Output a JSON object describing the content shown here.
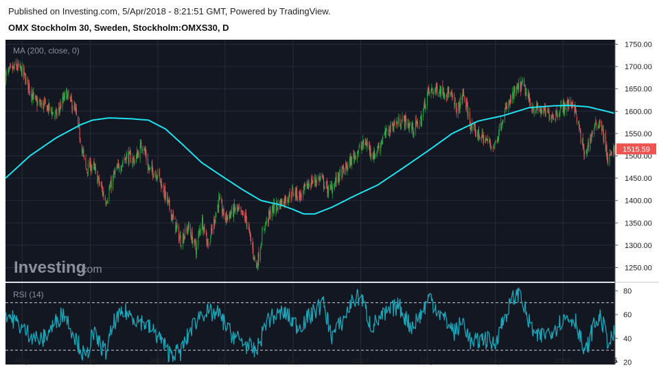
{
  "header": {
    "published": "Published on Investing.com, 5/Apr/2018 - 8:21:51 GMT, Powered by TradingView.",
    "instrument": "OMX Stockholm 30, Sweden, Stockholm:OMXS30, D"
  },
  "watermark": {
    "text": "Investing",
    "suffix": ".com"
  },
  "colors": {
    "background": "#131722",
    "grid": "#262b3a",
    "up": "#27a641",
    "down": "#e85b5b",
    "ma": "#1fe3f0",
    "rsi": "#1aa6b8",
    "price_tag": "#ef5350"
  },
  "chart_data": [
    {
      "type": "candlestick",
      "indicator_label": "MA (200, close, 0)",
      "y_ticks": [
        "1750.00",
        "1700.00",
        "1650.00",
        "1600.00",
        "1550.00",
        "1500.00",
        "1450.00",
        "1400.00",
        "1350.00",
        "1300.00",
        "1250.00"
      ],
      "ylim": [
        1220,
        1760
      ],
      "last_price": "1515.59",
      "close_path": [
        [
          "2015-04-01",
          1680
        ],
        [
          "2015-04-20",
          1700
        ],
        [
          "2015-05-01",
          1690
        ],
        [
          "2015-05-25",
          1620
        ],
        [
          "2015-06-15",
          1610
        ],
        [
          "2015-07-01",
          1590
        ],
        [
          "2015-07-20",
          1640
        ],
        [
          "2015-08-05",
          1600
        ],
        [
          "2015-08-24",
          1470
        ],
        [
          "2015-09-05",
          1480
        ],
        [
          "2015-09-29",
          1400
        ],
        [
          "2015-10-15",
          1460
        ],
        [
          "2015-11-05",
          1500
        ],
        [
          "2015-11-20",
          1490
        ],
        [
          "2015-12-05",
          1530
        ],
        [
          "2015-12-15",
          1470
        ],
        [
          "2016-01-01",
          1460
        ],
        [
          "2016-01-20",
          1390
        ],
        [
          "2016-02-11",
          1310
        ],
        [
          "2016-02-25",
          1340
        ],
        [
          "2016-03-10",
          1290
        ],
        [
          "2016-03-20",
          1360
        ],
        [
          "2016-04-01",
          1300
        ],
        [
          "2016-04-20",
          1400
        ],
        [
          "2016-05-01",
          1360
        ],
        [
          "2016-05-20",
          1380
        ],
        [
          "2016-06-08",
          1360
        ],
        [
          "2016-06-27",
          1250
        ],
        [
          "2016-07-10",
          1340
        ],
        [
          "2016-07-25",
          1380
        ],
        [
          "2016-08-15",
          1400
        ],
        [
          "2016-09-01",
          1420
        ],
        [
          "2016-09-15",
          1410
        ],
        [
          "2016-10-01",
          1440
        ],
        [
          "2016-10-20",
          1450
        ],
        [
          "2016-11-05",
          1420
        ],
        [
          "2016-11-20",
          1450
        ],
        [
          "2016-12-10",
          1480
        ],
        [
          "2016-12-25",
          1510
        ],
        [
          "2017-01-10",
          1530
        ],
        [
          "2017-01-25",
          1500
        ],
        [
          "2017-02-10",
          1540
        ],
        [
          "2017-02-28",
          1570
        ],
        [
          "2017-03-20",
          1580
        ],
        [
          "2017-04-05",
          1560
        ],
        [
          "2017-04-20",
          1580
        ],
        [
          "2017-05-01",
          1640
        ],
        [
          "2017-05-20",
          1650
        ],
        [
          "2017-06-10",
          1640
        ],
        [
          "2017-06-25",
          1600
        ],
        [
          "2017-07-05",
          1640
        ],
        [
          "2017-07-20",
          1560
        ],
        [
          "2017-08-10",
          1540
        ],
        [
          "2017-08-30",
          1520
        ],
        [
          "2017-09-15",
          1590
        ],
        [
          "2017-10-05",
          1640
        ],
        [
          "2017-10-20",
          1660
        ],
        [
          "2017-11-05",
          1610
        ],
        [
          "2017-11-25",
          1600
        ],
        [
          "2017-12-15",
          1590
        ],
        [
          "2018-01-01",
          1610
        ],
        [
          "2018-01-20",
          1620
        ],
        [
          "2018-02-09",
          1500
        ],
        [
          "2018-02-25",
          1560
        ],
        [
          "2018-03-10",
          1580
        ],
        [
          "2018-03-23",
          1490
        ],
        [
          "2018-04-05",
          1515
        ]
      ],
      "ma_200": [
        [
          "2015-04-01",
          1450
        ],
        [
          "2015-05-15",
          1500
        ],
        [
          "2015-07-01",
          1540
        ],
        [
          "2015-08-15",
          1570
        ],
        [
          "2015-09-05",
          1580
        ],
        [
          "2015-10-05",
          1585
        ],
        [
          "2015-11-15",
          1583
        ],
        [
          "2015-12-15",
          1580
        ],
        [
          "2016-01-15",
          1560
        ],
        [
          "2016-02-15",
          1525
        ],
        [
          "2016-03-20",
          1485
        ],
        [
          "2016-04-25",
          1455
        ],
        [
          "2016-06-01",
          1425
        ],
        [
          "2016-07-05",
          1400
        ],
        [
          "2016-08-10",
          1390
        ],
        [
          "2016-09-01",
          1380
        ],
        [
          "2016-09-20",
          1370
        ],
        [
          "2016-10-10",
          1370
        ],
        [
          "2016-11-10",
          1385
        ],
        [
          "2016-12-20",
          1410
        ],
        [
          "2017-02-01",
          1435
        ],
        [
          "2017-03-15",
          1470
        ],
        [
          "2017-05-01",
          1510
        ],
        [
          "2017-06-15",
          1550
        ],
        [
          "2017-08-01",
          1578
        ],
        [
          "2017-09-15",
          1590
        ],
        [
          "2017-11-01",
          1608
        ],
        [
          "2017-12-15",
          1612
        ],
        [
          "2018-01-10",
          1613
        ],
        [
          "2018-02-15",
          1610
        ],
        [
          "2018-03-10",
          1603
        ],
        [
          "2018-04-05",
          1595
        ]
      ]
    },
    {
      "type": "line",
      "indicator_label": "RSI (14)",
      "y_ticks": [
        "80",
        "60",
        "40",
        "20"
      ],
      "ylim": [
        18,
        86
      ],
      "dashed_levels": [
        70,
        30
      ],
      "anchors": [
        [
          "2015-04-01",
          62
        ],
        [
          "2015-05-10",
          45
        ],
        [
          "2015-06-05",
          38
        ],
        [
          "2015-07-15",
          62
        ],
        [
          "2015-08-24",
          22
        ],
        [
          "2015-09-05",
          45
        ],
        [
          "2015-09-29",
          28
        ],
        [
          "2015-10-15",
          55
        ],
        [
          "2015-11-05",
          62
        ],
        [
          "2015-12-10",
          52
        ],
        [
          "2016-01-05",
          40
        ],
        [
          "2016-01-20",
          28
        ],
        [
          "2016-02-11",
          28
        ],
        [
          "2016-03-01",
          48
        ],
        [
          "2016-03-20",
          62
        ],
        [
          "2016-04-20",
          60
        ],
        [
          "2016-05-10",
          45
        ],
        [
          "2016-06-27",
          28
        ],
        [
          "2016-07-15",
          55
        ],
        [
          "2016-08-15",
          62
        ],
        [
          "2016-09-10",
          50
        ],
        [
          "2016-10-05",
          60
        ],
        [
          "2016-10-25",
          70
        ],
        [
          "2016-11-10",
          42
        ],
        [
          "2016-11-30",
          55
        ],
        [
          "2016-12-15",
          70
        ],
        [
          "2017-01-01",
          76
        ],
        [
          "2017-01-20",
          50
        ],
        [
          "2017-02-15",
          60
        ],
        [
          "2017-03-10",
          68
        ],
        [
          "2017-04-01",
          50
        ],
        [
          "2017-04-20",
          60
        ],
        [
          "2017-05-05",
          75
        ],
        [
          "2017-05-25",
          60
        ],
        [
          "2017-06-20",
          45
        ],
        [
          "2017-07-05",
          55
        ],
        [
          "2017-07-20",
          35
        ],
        [
          "2017-08-10",
          40
        ],
        [
          "2017-08-30",
          35
        ],
        [
          "2017-09-15",
          55
        ],
        [
          "2017-10-01",
          72
        ],
        [
          "2017-10-15",
          80
        ],
        [
          "2017-10-30",
          55
        ],
        [
          "2017-11-15",
          40
        ],
        [
          "2017-12-05",
          45
        ],
        [
          "2017-12-20",
          50
        ],
        [
          "2018-01-05",
          58
        ],
        [
          "2018-01-25",
          55
        ],
        [
          "2018-02-09",
          25
        ],
        [
          "2018-02-25",
          50
        ],
        [
          "2018-03-10",
          58
        ],
        [
          "2018-03-25",
          35
        ],
        [
          "2018-04-05",
          45
        ]
      ]
    }
  ],
  "x_axis": {
    "ticks": [
      {
        "date": "2015-05-01",
        "label": "May",
        "bold": false
      },
      {
        "date": "2015-09-01",
        "label": "Sep",
        "bold": false
      },
      {
        "date": "2016-01-01",
        "label": "2016",
        "bold": true
      },
      {
        "date": "2016-05-01",
        "label": "May",
        "bold": false
      },
      {
        "date": "2016-09-01",
        "label": "Sep",
        "bold": false
      },
      {
        "date": "2017-01-01",
        "label": "2017",
        "bold": true
      },
      {
        "date": "2017-05-01",
        "label": "May",
        "bold": false
      },
      {
        "date": "2017-09-01",
        "label": "Sep",
        "bold": false
      },
      {
        "date": "2018-01-01",
        "label": "2018",
        "bold": true
      },
      {
        "date": "2018-04-05",
        "label": "5",
        "bold": true
      }
    ]
  }
}
